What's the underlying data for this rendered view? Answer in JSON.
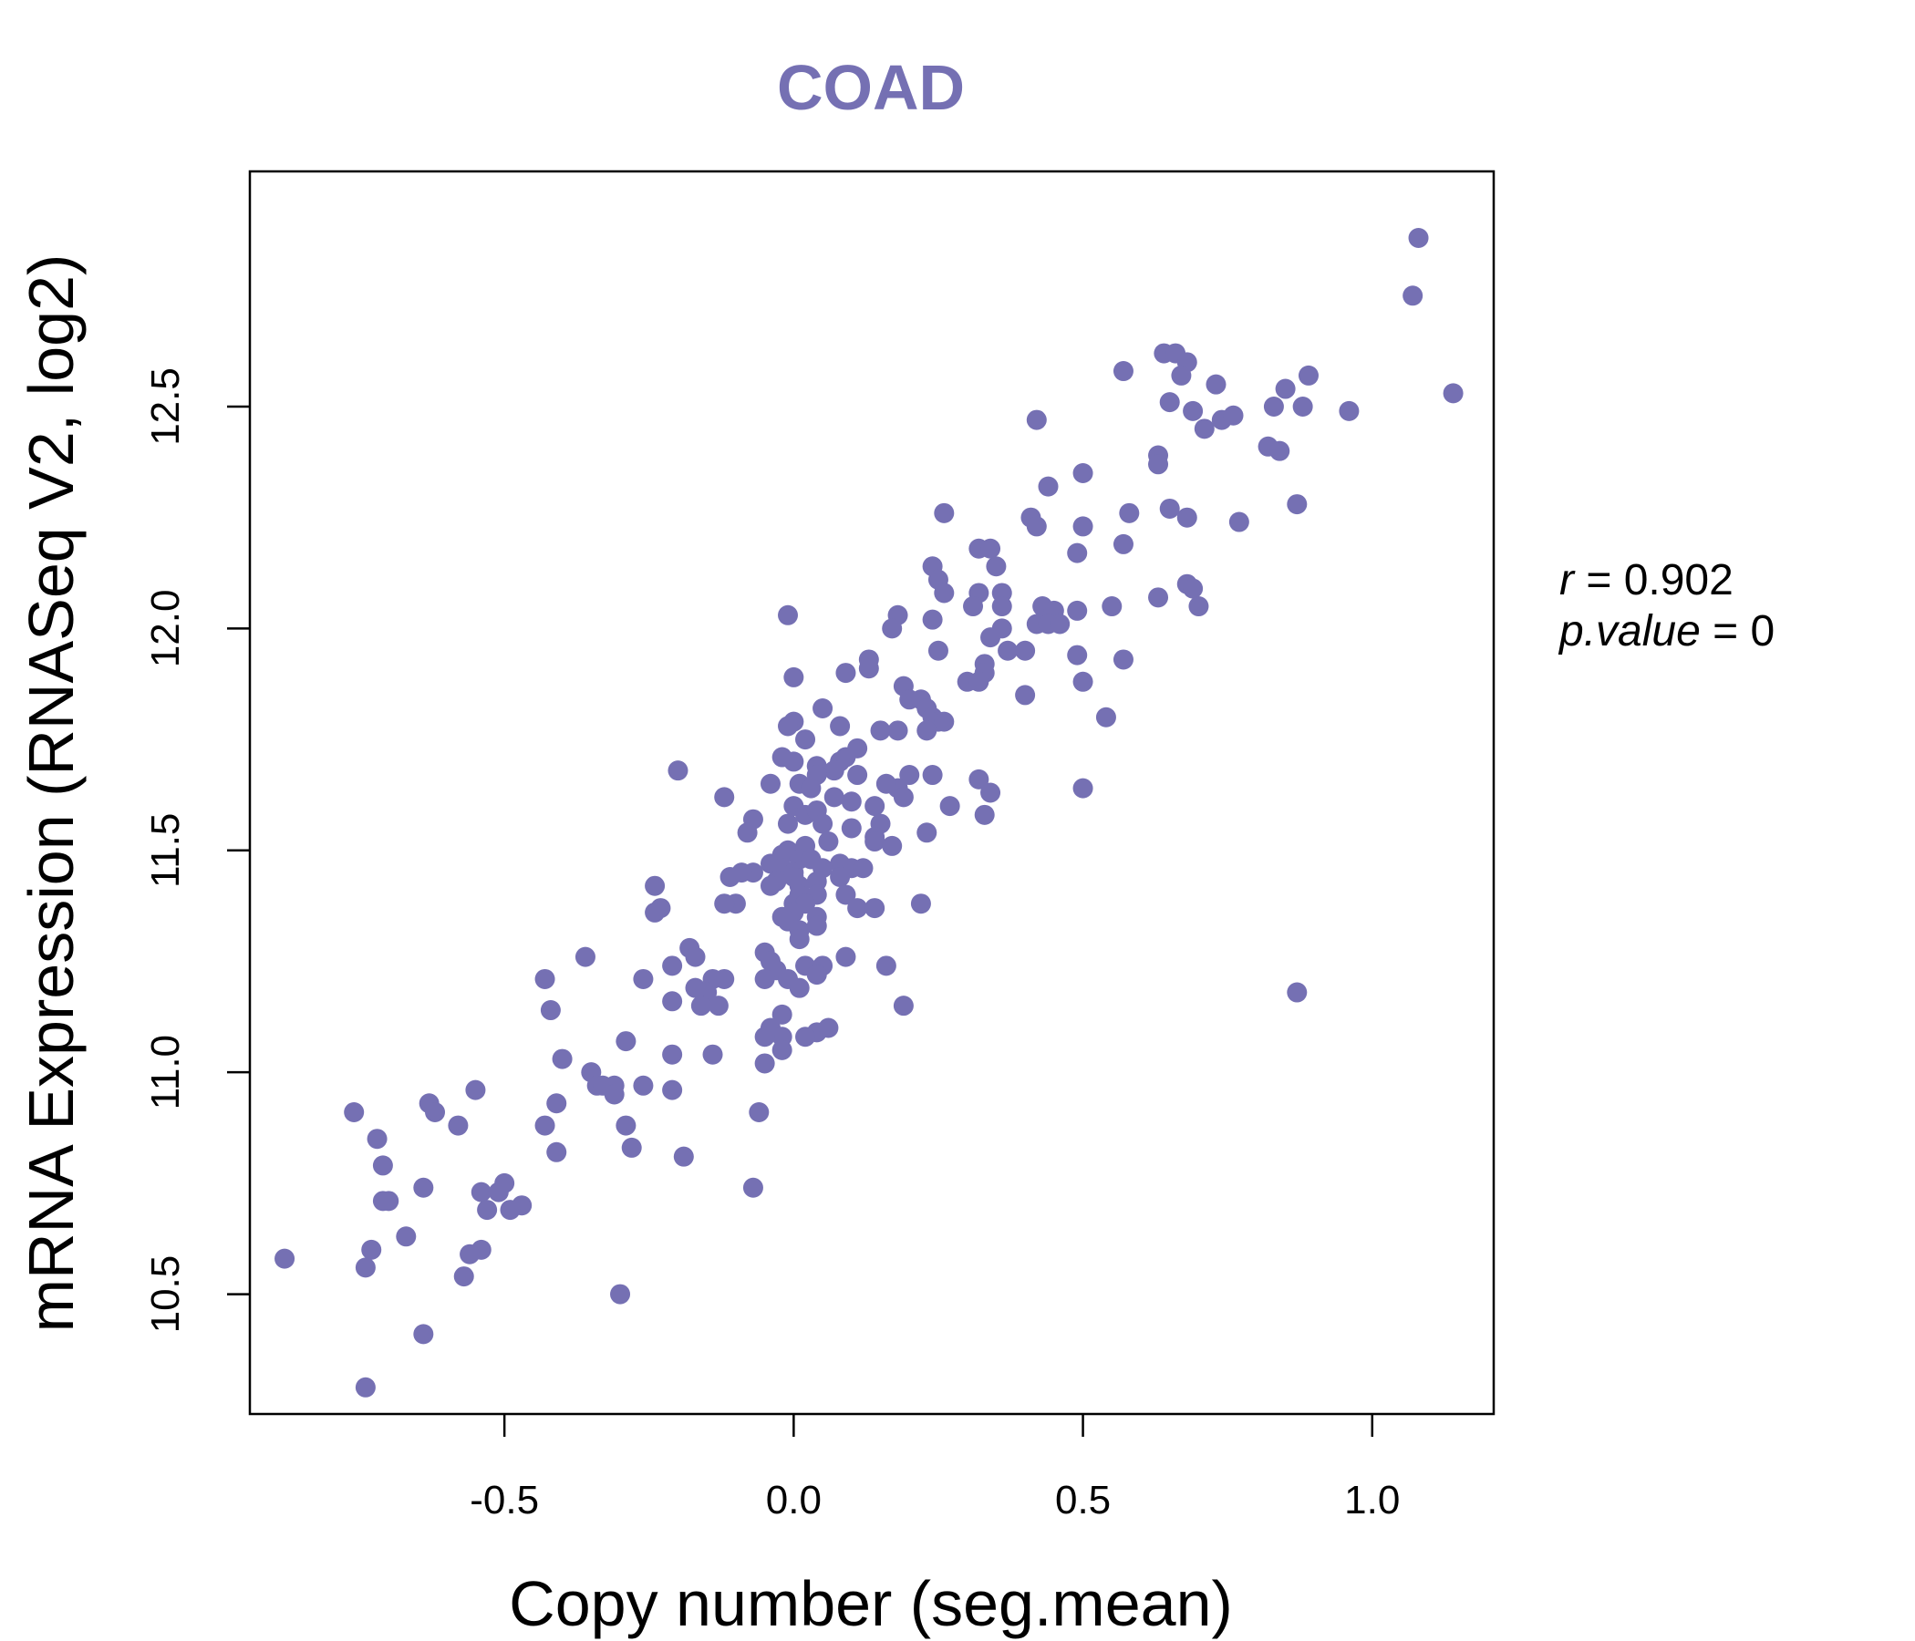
{
  "chart_data": {
    "type": "scatter",
    "title": "COAD",
    "xlabel": "Copy number (seg.mean)",
    "ylabel": "mRNA Expression (RNASeq V2, log2)",
    "xlim": [
      -0.94,
      1.21
    ],
    "ylim": [
      10.23,
      13.03
    ],
    "xticks": [
      -0.5,
      0.0,
      0.5,
      1.0
    ],
    "xtick_labels": [
      "-0.5",
      "0.0",
      "0.5",
      "1.0"
    ],
    "yticks": [
      10.5,
      11.0,
      11.5,
      12.0,
      12.5
    ],
    "ytick_labels": [
      "10.5",
      "11.0",
      "11.5",
      "12.0",
      "12.5"
    ],
    "point_color": "#7570b3",
    "grid": false,
    "stats": {
      "r_label": "r",
      "r_value": "0.902",
      "p_label": "p.value",
      "p_value": "0"
    },
    "points": [
      [
        1.08,
        12.88
      ],
      [
        1.07,
        12.75
      ],
      [
        1.14,
        12.53
      ],
      [
        0.96,
        12.49
      ],
      [
        0.89,
        12.57
      ],
      [
        0.88,
        12.5
      ],
      [
        0.85,
        12.54
      ],
      [
        0.83,
        12.5
      ],
      [
        0.82,
        12.41
      ],
      [
        0.84,
        12.4
      ],
      [
        0.87,
        12.28
      ],
      [
        0.64,
        12.62
      ],
      [
        0.66,
        12.62
      ],
      [
        0.68,
        12.6
      ],
      [
        0.67,
        12.57
      ],
      [
        0.73,
        12.55
      ],
      [
        0.65,
        12.51
      ],
      [
        0.69,
        12.49
      ],
      [
        0.74,
        12.47
      ],
      [
        0.76,
        12.48
      ],
      [
        0.71,
        12.45
      ],
      [
        0.57,
        12.58
      ],
      [
        0.42,
        12.47
      ],
      [
        0.63,
        12.39
      ],
      [
        0.63,
        12.37
      ],
      [
        0.5,
        12.35
      ],
      [
        0.44,
        12.32
      ],
      [
        0.65,
        12.27
      ],
      [
        0.68,
        12.25
      ],
      [
        0.58,
        12.26
      ],
      [
        0.77,
        12.24
      ],
      [
        0.41,
        12.25
      ],
      [
        0.42,
        12.23
      ],
      [
        0.5,
        12.23
      ],
      [
        0.26,
        12.26
      ],
      [
        0.57,
        12.19
      ],
      [
        0.49,
        12.17
      ],
      [
        0.32,
        12.18
      ],
      [
        0.34,
        12.18
      ],
      [
        0.24,
        12.14
      ],
      [
        0.35,
        12.14
      ],
      [
        0.25,
        12.11
      ],
      [
        0.68,
        12.1
      ],
      [
        0.69,
        12.09
      ],
      [
        0.26,
        12.08
      ],
      [
        0.32,
        12.08
      ],
      [
        0.36,
        12.08
      ],
      [
        0.63,
        12.07
      ],
      [
        0.31,
        12.05
      ],
      [
        0.36,
        12.05
      ],
      [
        0.43,
        12.05
      ],
      [
        0.45,
        12.04
      ],
      [
        0.49,
        12.04
      ],
      [
        0.55,
        12.05
      ],
      [
        0.7,
        12.05
      ],
      [
        0.18,
        12.03
      ],
      [
        0.24,
        12.02
      ],
      [
        0.17,
        12.0
      ],
      [
        0.42,
        12.01
      ],
      [
        0.44,
        12.01
      ],
      [
        0.46,
        12.01
      ],
      [
        0.36,
        12.0
      ],
      [
        -0.01,
        12.03
      ],
      [
        0.34,
        11.98
      ],
      [
        0.37,
        11.95
      ],
      [
        0.4,
        11.95
      ],
      [
        0.49,
        11.94
      ],
      [
        0.57,
        11.93
      ],
      [
        0.25,
        11.95
      ],
      [
        0.13,
        11.93
      ],
      [
        0.13,
        11.91
      ],
      [
        0.33,
        11.92
      ],
      [
        0.33,
        11.9
      ],
      [
        0.09,
        11.9
      ],
      [
        0.0,
        11.89
      ],
      [
        0.3,
        11.88
      ],
      [
        0.32,
        11.88
      ],
      [
        0.5,
        11.88
      ],
      [
        0.19,
        11.87
      ],
      [
        0.2,
        11.84
      ],
      [
        0.4,
        11.85
      ],
      [
        0.22,
        11.84
      ],
      [
        0.23,
        11.82
      ],
      [
        0.05,
        11.82
      ],
      [
        0.24,
        11.8
      ],
      [
        0.25,
        11.79
      ],
      [
        0.26,
        11.79
      ],
      [
        0.54,
        11.8
      ],
      [
        0.0,
        11.79
      ],
      [
        -0.01,
        11.78
      ],
      [
        0.08,
        11.78
      ],
      [
        0.02,
        11.75
      ],
      [
        0.23,
        11.77
      ],
      [
        0.15,
        11.77
      ],
      [
        0.18,
        11.77
      ],
      [
        0.11,
        11.73
      ],
      [
        0.09,
        11.71
      ],
      [
        -0.02,
        11.71
      ],
      [
        0.0,
        11.7
      ],
      [
        0.08,
        11.7
      ],
      [
        0.04,
        11.69
      ],
      [
        0.07,
        11.68
      ],
      [
        0.2,
        11.67
      ],
      [
        0.24,
        11.67
      ],
      [
        -0.2,
        11.68
      ],
      [
        0.04,
        11.67
      ],
      [
        0.11,
        11.67
      ],
      [
        -0.04,
        11.65
      ],
      [
        0.32,
        11.66
      ],
      [
        0.01,
        11.65
      ],
      [
        0.03,
        11.64
      ],
      [
        0.18,
        11.64
      ],
      [
        0.16,
        11.65
      ],
      [
        0.34,
        11.63
      ],
      [
        0.5,
        11.64
      ],
      [
        0.07,
        11.62
      ],
      [
        0.1,
        11.61
      ],
      [
        0.19,
        11.62
      ],
      [
        0.14,
        11.6
      ],
      [
        0.27,
        11.6
      ],
      [
        -0.12,
        11.62
      ],
      [
        0.0,
        11.6
      ],
      [
        0.02,
        11.58
      ],
      [
        0.04,
        11.59
      ],
      [
        0.33,
        11.58
      ],
      [
        -0.07,
        11.57
      ],
      [
        0.05,
        11.56
      ],
      [
        0.15,
        11.56
      ],
      [
        0.1,
        11.55
      ],
      [
        -0.01,
        11.56
      ],
      [
        -0.08,
        11.54
      ],
      [
        0.23,
        11.54
      ],
      [
        0.14,
        11.53
      ],
      [
        0.06,
        11.52
      ],
      [
        -0.01,
        11.5
      ],
      [
        0.14,
        11.52
      ],
      [
        0.17,
        11.51
      ],
      [
        0.02,
        11.51
      ],
      [
        -0.02,
        11.49
      ],
      [
        0.01,
        11.48
      ],
      [
        0.03,
        11.48
      ],
      [
        -0.04,
        11.47
      ],
      [
        0.08,
        11.47
      ],
      [
        0.1,
        11.46
      ],
      [
        -0.02,
        11.46
      ],
      [
        0.05,
        11.46
      ],
      [
        0.0,
        11.45
      ],
      [
        0.12,
        11.46
      ],
      [
        -0.07,
        11.45
      ],
      [
        -0.09,
        11.45
      ],
      [
        0.08,
        11.44
      ],
      [
        0.0,
        11.44
      ],
      [
        -0.03,
        11.43
      ],
      [
        0.04,
        11.43
      ],
      [
        -0.11,
        11.44
      ],
      [
        0.01,
        11.42
      ],
      [
        -0.24,
        11.42
      ],
      [
        -0.04,
        11.42
      ],
      [
        0.09,
        11.4
      ],
      [
        0.01,
        11.4
      ],
      [
        0.04,
        11.4
      ],
      [
        -0.1,
        11.38
      ],
      [
        -0.12,
        11.38
      ],
      [
        0.0,
        11.38
      ],
      [
        0.02,
        11.38
      ],
      [
        0.22,
        11.38
      ],
      [
        -0.23,
        11.37
      ],
      [
        -0.24,
        11.36
      ],
      [
        0.11,
        11.37
      ],
      [
        0.14,
        11.37
      ],
      [
        0.0,
        11.36
      ],
      [
        0.04,
        11.35
      ],
      [
        -0.02,
        11.35
      ],
      [
        -0.01,
        11.34
      ],
      [
        0.01,
        11.32
      ],
      [
        0.04,
        11.33
      ],
      [
        0.01,
        11.3
      ],
      [
        -0.18,
        11.28
      ],
      [
        -0.36,
        11.26
      ],
      [
        -0.05,
        11.27
      ],
      [
        -0.04,
        11.25
      ],
      [
        0.09,
        11.26
      ],
      [
        -0.17,
        11.26
      ],
      [
        -0.21,
        11.24
      ],
      [
        0.16,
        11.24
      ],
      [
        0.02,
        11.24
      ],
      [
        0.05,
        11.24
      ],
      [
        -0.03,
        11.23
      ],
      [
        0.04,
        11.22
      ],
      [
        -0.01,
        11.21
      ],
      [
        -0.26,
        11.21
      ],
      [
        -0.43,
        11.21
      ],
      [
        -0.05,
        11.21
      ],
      [
        -0.14,
        11.21
      ],
      [
        -0.12,
        11.21
      ],
      [
        0.01,
        11.19
      ],
      [
        -0.17,
        11.19
      ],
      [
        -0.15,
        11.18
      ],
      [
        -0.21,
        11.16
      ],
      [
        -0.16,
        11.15
      ],
      [
        -0.13,
        11.15
      ],
      [
        0.19,
        11.15
      ],
      [
        -0.42,
        11.14
      ],
      [
        -0.02,
        11.13
      ],
      [
        -0.04,
        11.1
      ],
      [
        -0.02,
        11.08
      ],
      [
        0.04,
        11.09
      ],
      [
        0.02,
        11.08
      ],
      [
        0.06,
        11.1
      ],
      [
        -0.05,
        11.08
      ],
      [
        -0.29,
        11.07
      ],
      [
        -0.02,
        11.05
      ],
      [
        -0.14,
        11.04
      ],
      [
        -0.21,
        11.04
      ],
      [
        -0.4,
        11.03
      ],
      [
        -0.05,
        11.02
      ],
      [
        -0.35,
        11.0
      ],
      [
        -0.34,
        10.97
      ],
      [
        -0.31,
        10.97
      ],
      [
        -0.33,
        10.97
      ],
      [
        -0.26,
        10.97
      ],
      [
        -0.21,
        10.96
      ],
      [
        -0.31,
        10.95
      ],
      [
        -0.55,
        10.96
      ],
      [
        -0.41,
        10.93
      ],
      [
        -0.63,
        10.93
      ],
      [
        -0.62,
        10.91
      ],
      [
        -0.76,
        10.91
      ],
      [
        -0.58,
        10.88
      ],
      [
        -0.43,
        10.88
      ],
      [
        -0.29,
        10.88
      ],
      [
        -0.06,
        10.91
      ],
      [
        -0.72,
        10.85
      ],
      [
        -0.28,
        10.83
      ],
      [
        -0.41,
        10.82
      ],
      [
        -0.19,
        10.81
      ],
      [
        -0.71,
        10.79
      ],
      [
        -0.5,
        10.75
      ],
      [
        -0.07,
        10.74
      ],
      [
        -0.54,
        10.73
      ],
      [
        -0.51,
        10.73
      ],
      [
        -0.64,
        10.74
      ],
      [
        -0.71,
        10.71
      ],
      [
        -0.7,
        10.71
      ],
      [
        -0.47,
        10.7
      ],
      [
        -0.53,
        10.69
      ],
      [
        -0.49,
        10.69
      ],
      [
        -0.67,
        10.63
      ],
      [
        -0.73,
        10.6
      ],
      [
        -0.54,
        10.6
      ],
      [
        -0.56,
        10.59
      ],
      [
        -0.88,
        10.58
      ],
      [
        -0.74,
        10.56
      ],
      [
        -0.57,
        10.54
      ],
      [
        -0.3,
        10.5
      ],
      [
        -0.64,
        10.41
      ],
      [
        -0.74,
        10.29
      ],
      [
        0.87,
        11.18
      ]
    ]
  }
}
